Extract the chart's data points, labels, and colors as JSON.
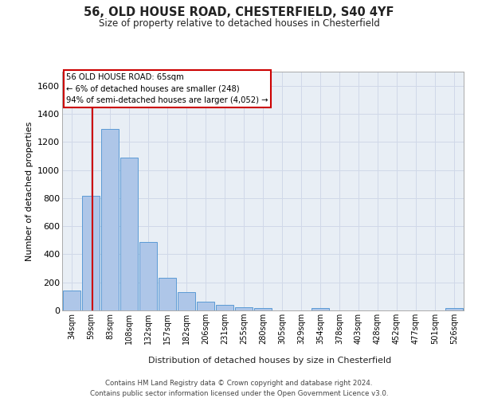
{
  "title_line1": "56, OLD HOUSE ROAD, CHESTERFIELD, S40 4YF",
  "title_line2": "Size of property relative to detached houses in Chesterfield",
  "xlabel": "Distribution of detached houses by size in Chesterfield",
  "ylabel": "Number of detached properties",
  "bar_labels": [
    "34sqm",
    "59sqm",
    "83sqm",
    "108sqm",
    "132sqm",
    "157sqm",
    "182sqm",
    "206sqm",
    "231sqm",
    "255sqm",
    "280sqm",
    "305sqm",
    "329sqm",
    "354sqm",
    "378sqm",
    "403sqm",
    "428sqm",
    "452sqm",
    "477sqm",
    "501sqm",
    "526sqm"
  ],
  "bar_values": [
    140,
    815,
    1290,
    1090,
    490,
    230,
    130,
    65,
    38,
    25,
    15,
    0,
    0,
    15,
    0,
    0,
    0,
    0,
    0,
    0,
    15
  ],
  "bar_color": "#aec6e8",
  "bar_edge_color": "#5b9bd5",
  "ylim": [
    0,
    1700
  ],
  "yticks": [
    0,
    200,
    400,
    600,
    800,
    1000,
    1200,
    1400,
    1600
  ],
  "annotation_text_line1": "56 OLD HOUSE ROAD: 65sqm",
  "annotation_text_line2": "← 6% of detached houses are smaller (248)",
  "annotation_text_line3": "94% of semi-detached houses are larger (4,052) →",
  "annotation_box_color": "#ffffff",
  "annotation_border_color": "#cc0000",
  "red_line_color": "#cc0000",
  "grid_color": "#d0d8e8",
  "bg_color": "#e8eef5",
  "footer_line1": "Contains HM Land Registry data © Crown copyright and database right 2024.",
  "footer_line2": "Contains public sector information licensed under the Open Government Licence v3.0."
}
